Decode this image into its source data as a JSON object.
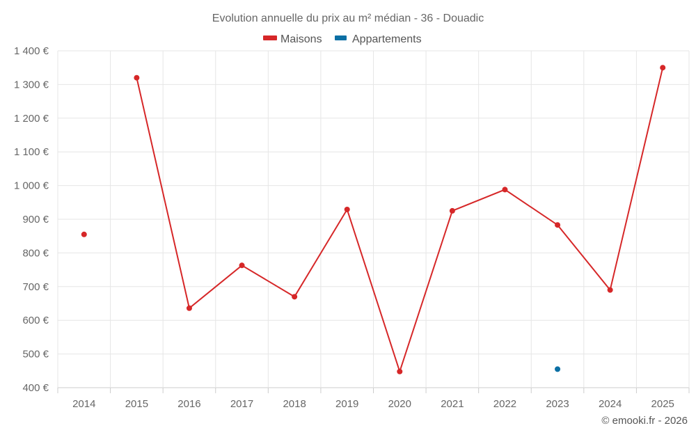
{
  "chart_data": {
    "type": "line",
    "title": "Evolution annuelle du prix au m² médian - 36 - Douadic",
    "categories": [
      "2014",
      "2015",
      "2016",
      "2017",
      "2018",
      "2019",
      "2020",
      "2021",
      "2022",
      "2023",
      "2024",
      "2025"
    ],
    "series": [
      {
        "name": "Maisons",
        "color": "#d62728",
        "values": [
          855,
          1320,
          636,
          763,
          670,
          929,
          448,
          925,
          988,
          883,
          690,
          1350
        ]
      },
      {
        "name": "Appartements",
        "color": "#0b6fa4",
        "values": [
          null,
          null,
          null,
          null,
          null,
          null,
          null,
          null,
          null,
          455,
          null,
          null
        ]
      }
    ],
    "ylim": [
      400,
      1400
    ],
    "yticks": [
      400,
      500,
      600,
      700,
      800,
      900,
      1000,
      1100,
      1200,
      1300,
      1400
    ],
    "ytick_labels": [
      "400 €",
      "500 €",
      "600 €",
      "700 €",
      "800 €",
      "900 €",
      "1 000 €",
      "1 100 €",
      "1 200 €",
      "1 300 €",
      "1 400 €"
    ],
    "grid": true,
    "legend_position": "top-center",
    "credit": "© emooki.fr - 2026"
  }
}
